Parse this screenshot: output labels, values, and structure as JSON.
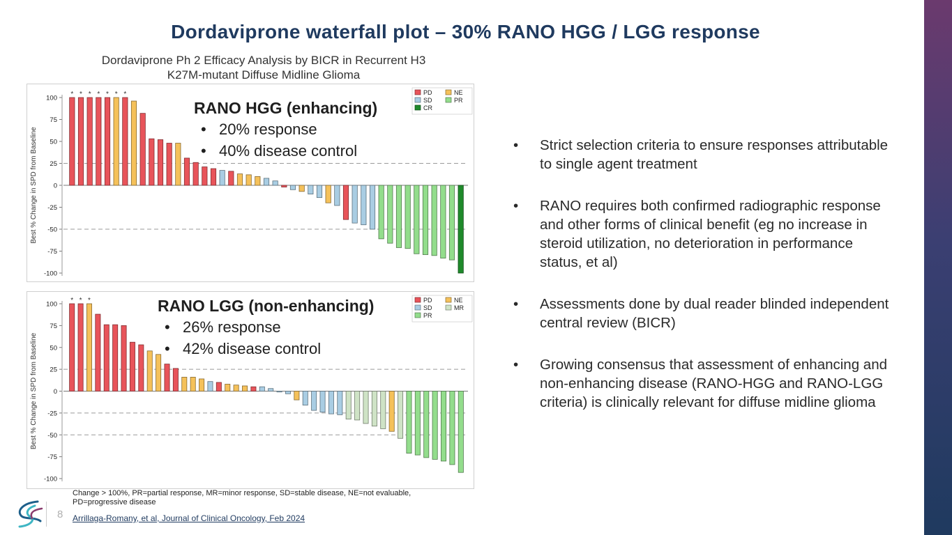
{
  "slide": {
    "title": "Dordaviprone waterfall plot – 30% RANO HGG / LGG response",
    "page_number": "8",
    "bullet_glyph": "•",
    "bullets": [
      "Strict selection criteria to ensure responses attributable to single agent treatment",
      "RANO requires both confirmed radiographic response and other forms of clinical benefit (eg no increase in steroid utilization, no deterioration in performance status, et al)",
      "Assessments done by dual reader blinded independent central review (BICR)",
      "Growing consensus that assessment of enhancing and non-enhancing disease (RANO-HGG and RANO-LGG criteria) is clinically relevant for diffuse midline glioma"
    ],
    "footnote": "Change > 100%, PR=partial response, MR=minor response, SD=stable disease, NE=not evaluable, PD=progressive disease",
    "citation": "Arrillaga-Romany, et al, Journal of Clinical Oncology, Feb 2024",
    "colors": {
      "brand": "#1f3a5f",
      "accent": "#6b3a6e"
    }
  },
  "chart_header": {
    "title_line1": "Dordaviprone Ph 2 Efficacy Analysis by BICR in Recurrent H3",
    "title_line2": "K27M-mutant Diffuse Midline Glioma"
  },
  "overlays": {
    "hgg": {
      "title": "RANO HGG (enhancing)",
      "items": [
        "20% response",
        "40% disease control"
      ]
    },
    "lgg": {
      "title": "RANO LGG (non-enhancing)",
      "items": [
        "26% response",
        "42% disease control"
      ]
    }
  },
  "chart_data": [
    {
      "type": "bar",
      "title": "RANO HGG (enhancing)",
      "ylabel": "Best % Change in SPD from Baseline",
      "ylim": [
        -100,
        100
      ],
      "yticks": [
        100,
        75,
        50,
        25,
        0,
        -25,
        -50,
        -75,
        -100
      ],
      "reference_lines": [
        25,
        -50
      ],
      "capped_marker": "*",
      "legend": [
        {
          "key": "PD",
          "label": "PD"
        },
        {
          "key": "NE",
          "label": "NE"
        },
        {
          "key": "SD",
          "label": "SD"
        },
        {
          "key": "PR",
          "label": "PR"
        },
        {
          "key": "CR",
          "label": "CR"
        }
      ],
      "category_colors": {
        "PD": "#e8545a",
        "NE": "#f5c15a",
        "SD": "#a9cde3",
        "PR": "#93dd8c",
        "CR": "#1f8a2b",
        "MR": "#cfe3c6"
      },
      "bars": [
        {
          "value": 100,
          "category": "PD",
          "capped": true
        },
        {
          "value": 100,
          "category": "PD",
          "capped": true
        },
        {
          "value": 100,
          "category": "PD",
          "capped": true
        },
        {
          "value": 100,
          "category": "PD",
          "capped": true
        },
        {
          "value": 100,
          "category": "PD",
          "capped": true
        },
        {
          "value": 100,
          "category": "NE",
          "capped": true
        },
        {
          "value": 100,
          "category": "PD",
          "capped": true
        },
        {
          "value": 96,
          "category": "NE"
        },
        {
          "value": 82,
          "category": "PD"
        },
        {
          "value": 53,
          "category": "PD"
        },
        {
          "value": 52,
          "category": "PD"
        },
        {
          "value": 48,
          "category": "PD"
        },
        {
          "value": 48,
          "category": "NE"
        },
        {
          "value": 31,
          "category": "PD"
        },
        {
          "value": 26,
          "category": "PD"
        },
        {
          "value": 21,
          "category": "PD"
        },
        {
          "value": 19,
          "category": "PD"
        },
        {
          "value": 17,
          "category": "SD"
        },
        {
          "value": 16,
          "category": "PD"
        },
        {
          "value": 13,
          "category": "NE"
        },
        {
          "value": 12,
          "category": "NE"
        },
        {
          "value": 10,
          "category": "NE"
        },
        {
          "value": 8,
          "category": "SD"
        },
        {
          "value": 5,
          "category": "SD"
        },
        {
          "value": -2,
          "category": "PD"
        },
        {
          "value": -5,
          "category": "SD"
        },
        {
          "value": -7,
          "category": "NE"
        },
        {
          "value": -10,
          "category": "SD"
        },
        {
          "value": -14,
          "category": "SD"
        },
        {
          "value": -20,
          "category": "NE"
        },
        {
          "value": -23,
          "category": "SD"
        },
        {
          "value": -39,
          "category": "PD"
        },
        {
          "value": -43,
          "category": "SD"
        },
        {
          "value": -45,
          "category": "SD"
        },
        {
          "value": -50,
          "category": "SD"
        },
        {
          "value": -61,
          "category": "PR"
        },
        {
          "value": -66,
          "category": "PR"
        },
        {
          "value": -71,
          "category": "PR"
        },
        {
          "value": -72,
          "category": "PR"
        },
        {
          "value": -78,
          "category": "PR"
        },
        {
          "value": -79,
          "category": "PR"
        },
        {
          "value": -80,
          "category": "PR"
        },
        {
          "value": -83,
          "category": "PR"
        },
        {
          "value": -85,
          "category": "PR"
        },
        {
          "value": -100,
          "category": "CR"
        }
      ]
    },
    {
      "type": "bar",
      "title": "RANO LGG (non-enhancing)",
      "ylabel": "Best % Change in SPD from Baseline",
      "ylim": [
        -100,
        100
      ],
      "yticks": [
        100,
        75,
        50,
        25,
        0,
        -25,
        -50,
        -75,
        -100
      ],
      "reference_lines": [
        25,
        -25,
        -50
      ],
      "capped_marker": "*",
      "legend": [
        {
          "key": "PD",
          "label": "PD"
        },
        {
          "key": "NE",
          "label": "NE"
        },
        {
          "key": "SD",
          "label": "SD"
        },
        {
          "key": "MR",
          "label": "MR"
        },
        {
          "key": "PR",
          "label": "PR"
        }
      ],
      "category_colors": {
        "PD": "#e8545a",
        "NE": "#f5c15a",
        "SD": "#a9cde3",
        "PR": "#93dd8c",
        "CR": "#1f8a2b",
        "MR": "#cfe3c6"
      },
      "bars": [
        {
          "value": 100,
          "category": "PD",
          "capped": true
        },
        {
          "value": 100,
          "category": "PD",
          "capped": true
        },
        {
          "value": 100,
          "category": "NE",
          "capped": true
        },
        {
          "value": 88,
          "category": "PD"
        },
        {
          "value": 76,
          "category": "PD"
        },
        {
          "value": 76,
          "category": "PD"
        },
        {
          "value": 75,
          "category": "PD"
        },
        {
          "value": 56,
          "category": "PD"
        },
        {
          "value": 53,
          "category": "PD"
        },
        {
          "value": 46,
          "category": "NE"
        },
        {
          "value": 42,
          "category": "NE"
        },
        {
          "value": 31,
          "category": "PD"
        },
        {
          "value": 26,
          "category": "PD"
        },
        {
          "value": 16,
          "category": "NE"
        },
        {
          "value": 16,
          "category": "NE"
        },
        {
          "value": 14,
          "category": "NE"
        },
        {
          "value": 11,
          "category": "SD"
        },
        {
          "value": 10,
          "category": "PD"
        },
        {
          "value": 8,
          "category": "NE"
        },
        {
          "value": 7,
          "category": "NE"
        },
        {
          "value": 6,
          "category": "NE"
        },
        {
          "value": 5,
          "category": "PD"
        },
        {
          "value": 5,
          "category": "SD"
        },
        {
          "value": 3,
          "category": "SD"
        },
        {
          "value": -1,
          "category": "SD"
        },
        {
          "value": -3,
          "category": "SD"
        },
        {
          "value": -10,
          "category": "NE"
        },
        {
          "value": -16,
          "category": "SD"
        },
        {
          "value": -22,
          "category": "SD"
        },
        {
          "value": -24,
          "category": "SD"
        },
        {
          "value": -26,
          "category": "SD"
        },
        {
          "value": -27,
          "category": "SD"
        },
        {
          "value": -32,
          "category": "MR"
        },
        {
          "value": -33,
          "category": "MR"
        },
        {
          "value": -37,
          "category": "MR"
        },
        {
          "value": -40,
          "category": "MR"
        },
        {
          "value": -43,
          "category": "MR"
        },
        {
          "value": -46,
          "category": "NE"
        },
        {
          "value": -54,
          "category": "MR"
        },
        {
          "value": -71,
          "category": "PR"
        },
        {
          "value": -73,
          "category": "PR"
        },
        {
          "value": -76,
          "category": "PR"
        },
        {
          "value": -78,
          "category": "PR"
        },
        {
          "value": -80,
          "category": "PR"
        },
        {
          "value": -84,
          "category": "PR"
        },
        {
          "value": -93,
          "category": "PR"
        }
      ]
    }
  ]
}
